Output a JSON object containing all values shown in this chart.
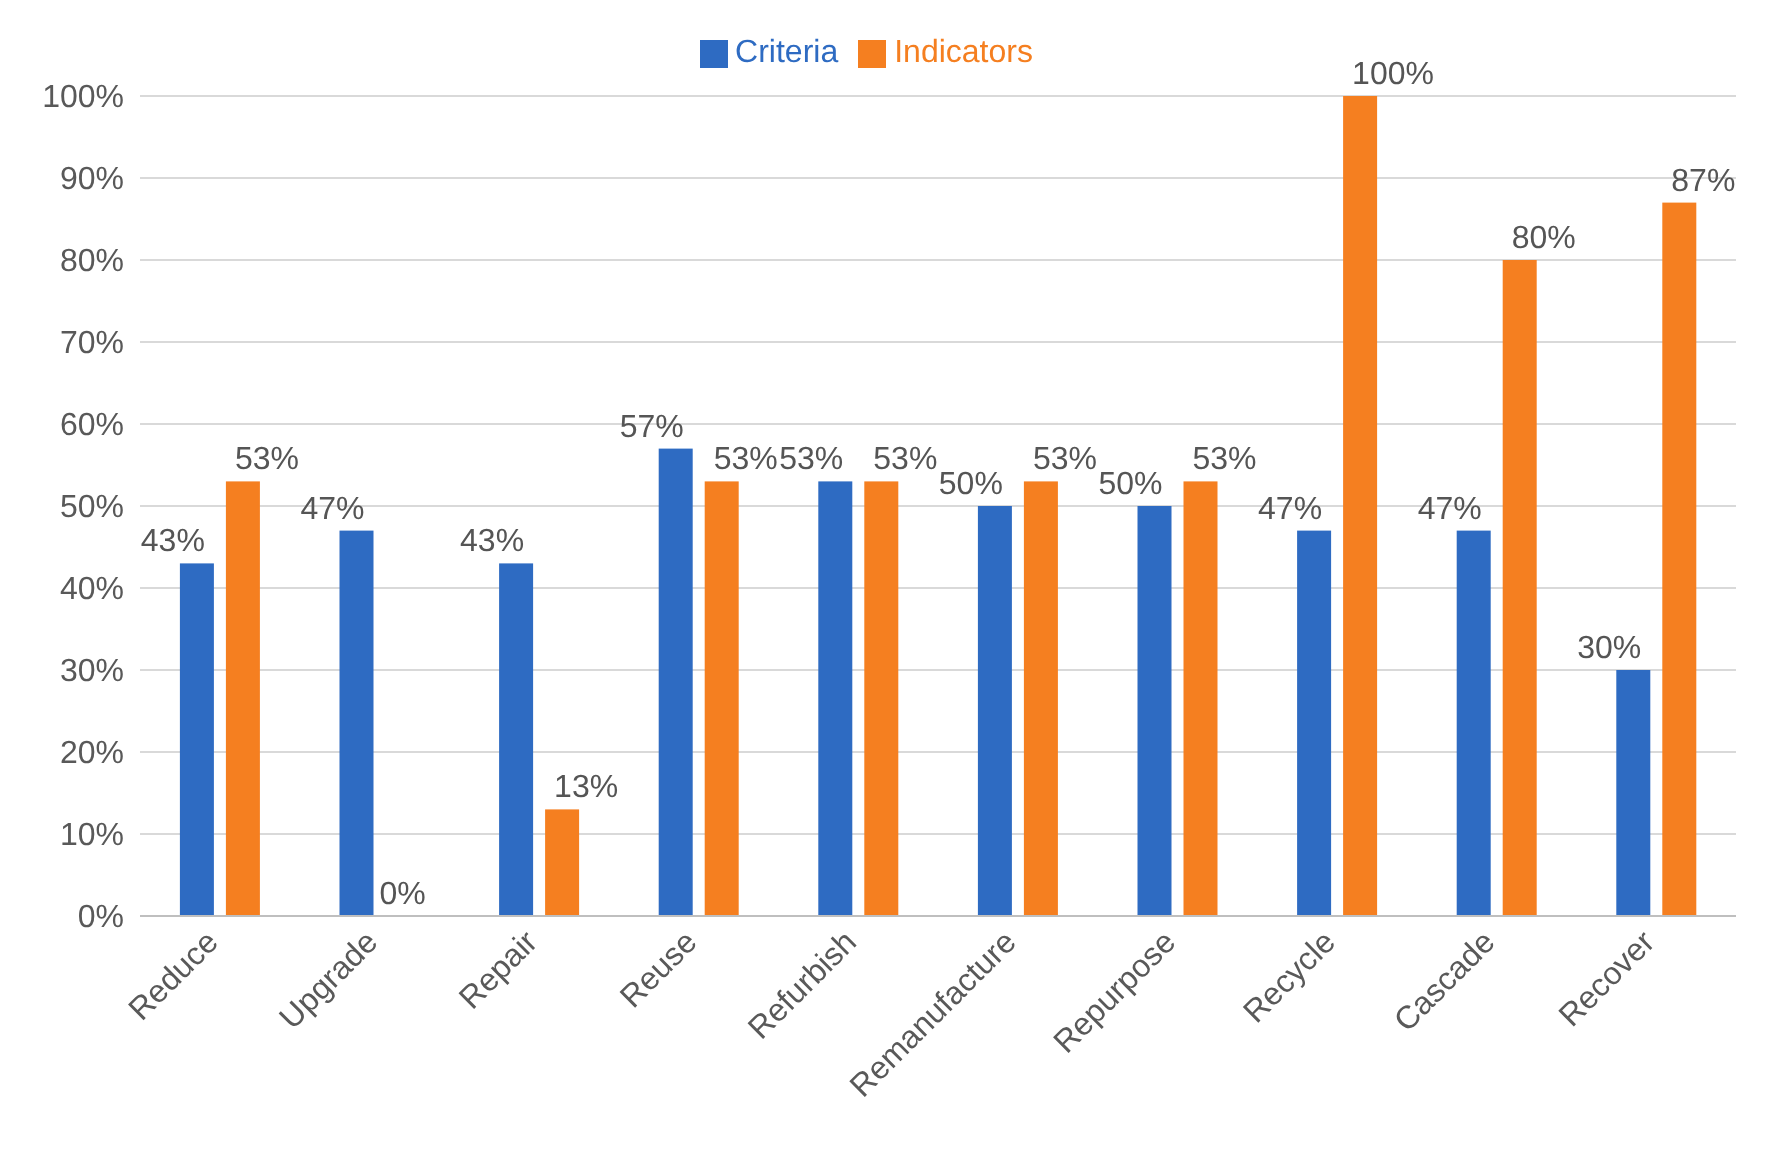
{
  "chart_data": {
    "type": "bar",
    "categories": [
      "Reduce",
      "Upgrade",
      "Repair",
      "Reuse",
      "Refurbish",
      "Remanufacture",
      "Repurpose",
      "Recycle",
      "Cascade",
      "Recover"
    ],
    "series": [
      {
        "name": "Criteria",
        "color": "#2e6bc2",
        "values": [
          43,
          47,
          43,
          57,
          53,
          50,
          50,
          47,
          47,
          30
        ],
        "value_labels": [
          "43%",
          "47%",
          "43%",
          "57%",
          "53%",
          "50%",
          "50%",
          "47%",
          "47%",
          "30%"
        ]
      },
      {
        "name": "Indicators",
        "color": "#f57f20",
        "values": [
          53,
          0,
          13,
          53,
          53,
          53,
          53,
          100,
          80,
          87
        ],
        "value_labels": [
          "53%",
          "0%",
          "13%",
          "53%",
          "53%",
          "53%",
          "53%",
          "100%",
          "80%",
          "87%"
        ]
      }
    ],
    "ylim": [
      0,
      100
    ],
    "yticks": [
      {
        "value": 0,
        "label": "0%"
      },
      {
        "value": 10,
        "label": "10%"
      },
      {
        "value": 20,
        "label": "20%"
      },
      {
        "value": 30,
        "label": "30%"
      },
      {
        "value": 40,
        "label": "40%"
      },
      {
        "value": 50,
        "label": "50%"
      },
      {
        "value": 60,
        "label": "60%"
      },
      {
        "value": 70,
        "label": "70%"
      },
      {
        "value": 80,
        "label": "80%"
      },
      {
        "value": 90,
        "label": "90%"
      },
      {
        "value": 100,
        "label": "100%"
      }
    ],
    "grid": "y",
    "legend": "top"
  }
}
